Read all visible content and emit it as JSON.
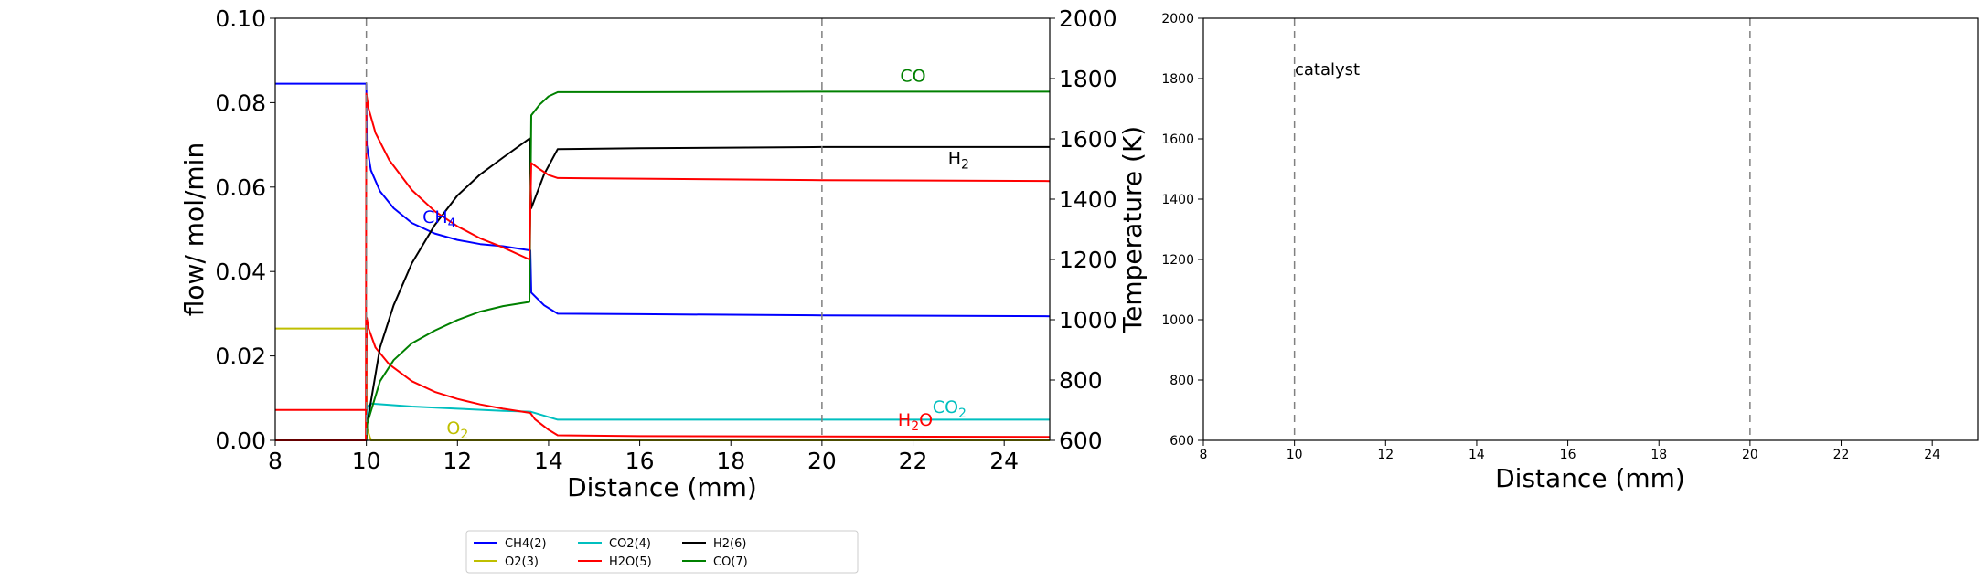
{
  "chart_data": [
    {
      "type": "line",
      "xlabel": "Distance (mm)",
      "ylabel": "flow/ mol/min",
      "y2label": "Temperature (K)",
      "xlim": [
        8,
        25
      ],
      "ylim": [
        0,
        0.1
      ],
      "y2lim": [
        600,
        2000
      ],
      "xticks": [
        "8",
        "10",
        "12",
        "14",
        "16",
        "18",
        "20",
        "22",
        "24"
      ],
      "yticks": [
        "0.00",
        "0.02",
        "0.04",
        "0.06",
        "0.08",
        "0.10"
      ],
      "y2ticks": [
        "600",
        "800",
        "1000",
        "1200",
        "1400",
        "1600",
        "1800",
        "2000"
      ],
      "vlines": [
        10,
        20
      ],
      "grid": false,
      "legend_position": "bottom-center",
      "series": [
        {
          "name": "CH4(2)",
          "color": "#0000ff",
          "axis": "left",
          "x": [
            8,
            10,
            10.01,
            10.1,
            10.3,
            10.6,
            11,
            11.5,
            12,
            12.5,
            13,
            13.6,
            13.62,
            13.9,
            14.2,
            16,
            20,
            25
          ],
          "y": [
            0.0845,
            0.0845,
            0.07,
            0.064,
            0.059,
            0.055,
            0.0515,
            0.049,
            0.0475,
            0.0465,
            0.046,
            0.045,
            0.035,
            0.032,
            0.03,
            0.0299,
            0.0296,
            0.0294
          ]
        },
        {
          "name": "O2(3)",
          "color": "#bfbf00",
          "axis": "left",
          "x": [
            8,
            10,
            10.01,
            10.1,
            12,
            25
          ],
          "y": [
            0.0265,
            0.0265,
            0.003,
            0.0,
            0.0,
            0.0
          ]
        },
        {
          "name": "CO2(4)",
          "color": "#00bfbf",
          "axis": "left",
          "x": [
            8,
            10,
            10.02,
            10.1,
            11,
            12,
            13,
            13.6,
            14.2,
            16,
            20,
            25
          ],
          "y": [
            0.0,
            0.0,
            0.008,
            0.0087,
            0.008,
            0.0075,
            0.007,
            0.0068,
            0.0049,
            0.0049,
            0.0049,
            0.0049
          ]
        },
        {
          "name": "H2O(5)",
          "color": "#ff0000",
          "axis": "left",
          "x": [
            8,
            10,
            10.01,
            10.05,
            10.2,
            10.5,
            11,
            11.5,
            12,
            12.5,
            13,
            13.6,
            13.7,
            14,
            14.2,
            16,
            20,
            25
          ],
          "y": [
            0.0072,
            0.0072,
            0.029,
            0.0265,
            0.022,
            0.018,
            0.014,
            0.0115,
            0.0098,
            0.0085,
            0.0075,
            0.0065,
            0.005,
            0.0025,
            0.0012,
            0.001,
            0.0009,
            0.0008
          ]
        },
        {
          "name": "H2(6)",
          "color": "#000000",
          "axis": "left",
          "x": [
            8,
            10,
            10.02,
            10.3,
            10.6,
            11,
            11.5,
            12,
            12.5,
            13,
            13.58,
            13.62,
            13.9,
            14.2,
            16,
            20,
            25
          ],
          "y": [
            0.0,
            0.0,
            0.004,
            0.022,
            0.032,
            0.042,
            0.051,
            0.058,
            0.063,
            0.067,
            0.0715,
            0.055,
            0.063,
            0.069,
            0.0692,
            0.0695,
            0.0695
          ]
        },
        {
          "name": "CO(7)",
          "color": "#008000",
          "axis": "left",
          "x": [
            8,
            10,
            10.02,
            10.3,
            10.6,
            11,
            11.5,
            12,
            12.5,
            13,
            13.58,
            13.62,
            13.8,
            14,
            14.2,
            16,
            20,
            25
          ],
          "y": [
            0.0,
            0.0,
            0.004,
            0.014,
            0.019,
            0.023,
            0.026,
            0.0285,
            0.0305,
            0.0318,
            0.0328,
            0.077,
            0.0795,
            0.0815,
            0.0825,
            0.0825,
            0.0826,
            0.0826
          ]
        },
        {
          "name": "temperature",
          "color": "#ff0000",
          "axis": "right",
          "x": [
            8,
            9.99,
            10.0,
            10.05,
            10.2,
            10.5,
            11,
            11.5,
            12,
            12.5,
            13,
            13.58,
            13.62,
            13.8,
            14,
            14.2,
            16,
            20,
            25
          ],
          "y": [
            600,
            600,
            1750,
            1700,
            1620,
            1530,
            1430,
            1360,
            1310,
            1270,
            1240,
            1200,
            1520,
            1500,
            1480,
            1470,
            1468,
            1463,
            1460
          ]
        }
      ],
      "annotations": [
        {
          "x": 11.6,
          "y": 0.0515,
          "color": "#0000ff",
          "base": "CH",
          "sub": "4"
        },
        {
          "x": 12.0,
          "y": 0.0015,
          "color": "#bfbf00",
          "base": "O",
          "sub": "2"
        },
        {
          "x": 22.8,
          "y": 0.0065,
          "color": "#00bfbf",
          "base": "CO",
          "sub": "2"
        },
        {
          "x": 22.05,
          "y": 0.0035,
          "color": "#ff0000",
          "base": "H",
          "sub": "2",
          "tail": "O"
        },
        {
          "x": 23.0,
          "y": 0.0655,
          "color": "#000000",
          "base": "H",
          "sub": "2"
        },
        {
          "x": 22.0,
          "y": 0.085,
          "color": "#008000",
          "base": "CO",
          "sub": ""
        }
      ]
    },
    {
      "type": "line",
      "xlabel": "Distance (mm)",
      "ylabel": "",
      "xlim": [
        8,
        25
      ],
      "ylim": [
        600,
        2000
      ],
      "xticks": [
        "8",
        "10",
        "12",
        "14",
        "16",
        "18",
        "20",
        "22",
        "24"
      ],
      "yticks": [
        "600",
        "800",
        "1000",
        "1200",
        "1400",
        "1600",
        "1800",
        "2000"
      ],
      "vlines": [
        10,
        20
      ],
      "annotation": "catalyst",
      "grid": false,
      "series": []
    }
  ]
}
